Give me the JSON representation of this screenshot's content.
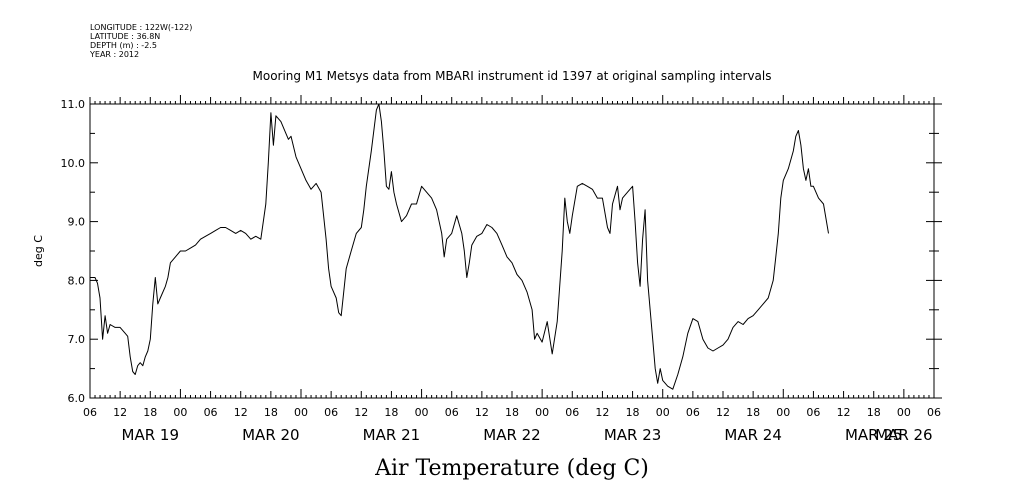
{
  "meta": {
    "longitude": "LONGITUDE : 122W(-122)",
    "latitude": "LATITUDE : 36.8N",
    "depth": "DEPTH (m) : -2.5",
    "year": "YEAR : 2012"
  },
  "chart_data": {
    "type": "line",
    "title": "Mooring M1 Metsys data from MBARI instrument id 1397 at original sampling intervals",
    "footer_title": "Air Temperature (deg C)",
    "ylabel": "deg C",
    "xlabel": "",
    "ylim": [
      6.0,
      11.0
    ],
    "y_ticks": [
      "6.0",
      "7.0",
      "8.0",
      "9.0",
      "10.0",
      "11.0"
    ],
    "xlim_hours": [
      0,
      168
    ],
    "x_hour_tick_labels": [
      "06",
      "12",
      "18",
      "00",
      "06",
      "12",
      "18",
      "00",
      "06",
      "12",
      "18",
      "00",
      "06",
      "12",
      "18",
      "00",
      "06",
      "12",
      "18",
      "00",
      "06",
      "12",
      "18",
      "00",
      "06",
      "12",
      "18",
      "00",
      "06"
    ],
    "date_labels": [
      {
        "label": "MAR 19",
        "hour": 12
      },
      {
        "label": "MAR 20",
        "hour": 36
      },
      {
        "label": "MAR 21",
        "hour": 60
      },
      {
        "label": "MAR 22",
        "hour": 84
      },
      {
        "label": "MAR 23",
        "hour": 108
      },
      {
        "label": "MAR 24",
        "hour": 132
      },
      {
        "label": "MAR 25",
        "hour": 156
      },
      {
        "label": "MAR 26",
        "hour": 162
      }
    ],
    "grid": false,
    "series": [
      {
        "color": "#000000",
        "points": [
          [
            0,
            8.05
          ],
          [
            1,
            8.05
          ],
          [
            1.5,
            7.95
          ],
          [
            2,
            7.7
          ],
          [
            2.5,
            7.0
          ],
          [
            3,
            7.4
          ],
          [
            3.5,
            7.1
          ],
          [
            4,
            7.25
          ],
          [
            5,
            7.2
          ],
          [
            6,
            7.2
          ],
          [
            7,
            7.1
          ],
          [
            7.5,
            7.05
          ],
          [
            8,
            6.7
          ],
          [
            8.5,
            6.45
          ],
          [
            9,
            6.4
          ],
          [
            9.5,
            6.55
          ],
          [
            10,
            6.6
          ],
          [
            10.5,
            6.55
          ],
          [
            11,
            6.7
          ],
          [
            11.5,
            6.8
          ],
          [
            12,
            7.0
          ],
          [
            12.5,
            7.6
          ],
          [
            13,
            8.05
          ],
          [
            13.5,
            7.6
          ],
          [
            14,
            7.7
          ],
          [
            15,
            7.9
          ],
          [
            15.5,
            8.05
          ],
          [
            16,
            8.3
          ],
          [
            17,
            8.4
          ],
          [
            18,
            8.5
          ],
          [
            19,
            8.5
          ],
          [
            20,
            8.55
          ],
          [
            21,
            8.6
          ],
          [
            22,
            8.7
          ],
          [
            23,
            8.75
          ],
          [
            24,
            8.8
          ],
          [
            25,
            8.85
          ],
          [
            26,
            8.9
          ],
          [
            27,
            8.9
          ],
          [
            28,
            8.85
          ],
          [
            29,
            8.8
          ],
          [
            30,
            8.85
          ],
          [
            31,
            8.8
          ],
          [
            32,
            8.7
          ],
          [
            33,
            8.75
          ],
          [
            34,
            8.7
          ],
          [
            35,
            9.3
          ],
          [
            35.5,
            10.0
          ],
          [
            36,
            10.85
          ],
          [
            36.5,
            10.3
          ],
          [
            37,
            10.8
          ],
          [
            38,
            10.7
          ],
          [
            39,
            10.5
          ],
          [
            39.5,
            10.4
          ],
          [
            40,
            10.45
          ],
          [
            41,
            10.1
          ],
          [
            42,
            9.9
          ],
          [
            43,
            9.7
          ],
          [
            44,
            9.55
          ],
          [
            45,
            9.65
          ],
          [
            46,
            9.5
          ],
          [
            47,
            8.7
          ],
          [
            47.5,
            8.2
          ],
          [
            48,
            7.9
          ],
          [
            49,
            7.7
          ],
          [
            49.5,
            7.45
          ],
          [
            50,
            7.4
          ],
          [
            50.5,
            7.8
          ],
          [
            51,
            8.2
          ],
          [
            52,
            8.5
          ],
          [
            53,
            8.8
          ],
          [
            54,
            8.9
          ],
          [
            54.5,
            9.2
          ],
          [
            55,
            9.6
          ],
          [
            56,
            10.2
          ],
          [
            57,
            10.9
          ],
          [
            57.5,
            11.0
          ],
          [
            58,
            10.7
          ],
          [
            58.5,
            10.2
          ],
          [
            59,
            9.6
          ],
          [
            59.5,
            9.55
          ],
          [
            60,
            9.85
          ],
          [
            60.5,
            9.5
          ],
          [
            61,
            9.3
          ],
          [
            62,
            9.0
          ],
          [
            63,
            9.1
          ],
          [
            64,
            9.3
          ],
          [
            65,
            9.3
          ],
          [
            66,
            9.6
          ],
          [
            67,
            9.5
          ],
          [
            68,
            9.4
          ],
          [
            69,
            9.2
          ],
          [
            70,
            8.8
          ],
          [
            70.5,
            8.4
          ],
          [
            71,
            8.7
          ],
          [
            72,
            8.8
          ],
          [
            73,
            9.1
          ],
          [
            74,
            8.8
          ],
          [
            74.5,
            8.5
          ],
          [
            75,
            8.05
          ],
          [
            75.5,
            8.3
          ],
          [
            76,
            8.6
          ],
          [
            77,
            8.75
          ],
          [
            78,
            8.8
          ],
          [
            79,
            8.95
          ],
          [
            80,
            8.9
          ],
          [
            81,
            8.8
          ],
          [
            82,
            8.6
          ],
          [
            83,
            8.4
          ],
          [
            84,
            8.3
          ],
          [
            85,
            8.1
          ],
          [
            86,
            8.0
          ],
          [
            87,
            7.8
          ],
          [
            88,
            7.5
          ],
          [
            88.5,
            7.0
          ],
          [
            89,
            7.1
          ],
          [
            90,
            6.95
          ],
          [
            91,
            7.3
          ],
          [
            92,
            6.75
          ],
          [
            93,
            7.3
          ],
          [
            94,
            8.5
          ],
          [
            94.5,
            9.4
          ],
          [
            95,
            9.0
          ],
          [
            95.5,
            8.8
          ],
          [
            96,
            9.1
          ],
          [
            97,
            9.6
          ],
          [
            98,
            9.65
          ],
          [
            99,
            9.6
          ],
          [
            100,
            9.55
          ],
          [
            101,
            9.4
          ],
          [
            102,
            9.4
          ],
          [
            103,
            8.9
          ],
          [
            103.5,
            8.8
          ],
          [
            104,
            9.3
          ],
          [
            105,
            9.6
          ],
          [
            105.5,
            9.2
          ],
          [
            106,
            9.4
          ],
          [
            107,
            9.5
          ],
          [
            108,
            9.6
          ],
          [
            108.5,
            9.0
          ],
          [
            109,
            8.3
          ],
          [
            109.5,
            7.9
          ],
          [
            110,
            8.7
          ],
          [
            110.5,
            9.2
          ],
          [
            111,
            8.0
          ],
          [
            112,
            7.0
          ],
          [
            112.5,
            6.5
          ],
          [
            113,
            6.25
          ],
          [
            113.5,
            6.5
          ],
          [
            114,
            6.3
          ],
          [
            115,
            6.2
          ],
          [
            116,
            6.15
          ],
          [
            117,
            6.4
          ],
          [
            118,
            6.7
          ],
          [
            119,
            7.1
          ],
          [
            120,
            7.35
          ],
          [
            121,
            7.3
          ],
          [
            122,
            7.0
          ],
          [
            123,
            6.85
          ],
          [
            124,
            6.8
          ],
          [
            125,
            6.85
          ],
          [
            126,
            6.9
          ],
          [
            127,
            7.0
          ],
          [
            128,
            7.2
          ],
          [
            129,
            7.3
          ],
          [
            130,
            7.25
          ],
          [
            131,
            7.35
          ],
          [
            132,
            7.4
          ],
          [
            133,
            7.5
          ],
          [
            134,
            7.6
          ],
          [
            135,
            7.7
          ],
          [
            136,
            8.0
          ],
          [
            136.5,
            8.4
          ],
          [
            137,
            8.8
          ],
          [
            137.5,
            9.4
          ],
          [
            138,
            9.7
          ],
          [
            139,
            9.9
          ],
          [
            140,
            10.2
          ],
          [
            140.5,
            10.45
          ],
          [
            141,
            10.55
          ],
          [
            141.5,
            10.3
          ],
          [
            142,
            9.9
          ],
          [
            142.5,
            9.7
          ],
          [
            143,
            9.9
          ],
          [
            143.5,
            9.6
          ],
          [
            144,
            9.6
          ],
          [
            145,
            9.4
          ],
          [
            146,
            9.3
          ],
          [
            147,
            8.8
          ]
        ]
      }
    ]
  }
}
